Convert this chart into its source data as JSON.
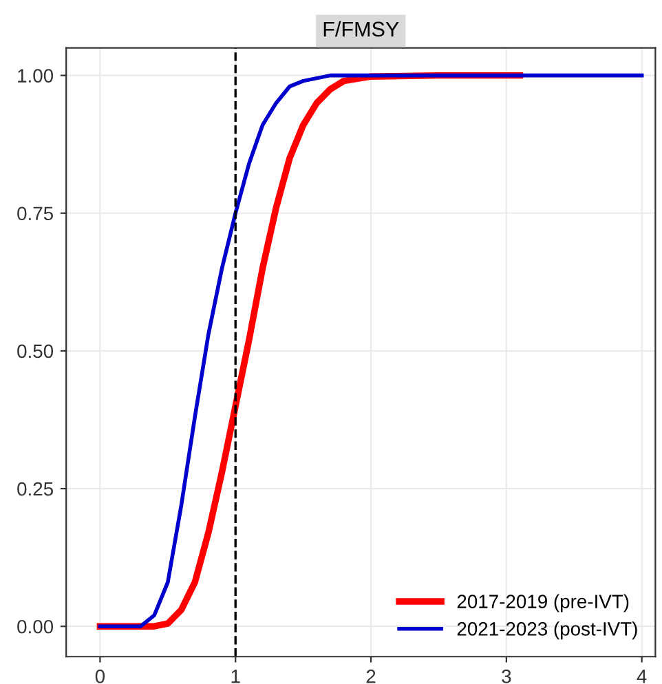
{
  "chart_data": {
    "type": "line",
    "title": "F/FMSY",
    "xlim": [
      -0.25,
      4.1
    ],
    "xticks": [
      0,
      1,
      2,
      3,
      4
    ],
    "ylim": [
      -0.055,
      1.05
    ],
    "yticks": [
      {
        "value": 0,
        "label": "0.00"
      },
      {
        "value": 0.25,
        "label": "0.25"
      },
      {
        "value": 0.5,
        "label": "0.50"
      },
      {
        "value": 0.75,
        "label": "0.75"
      },
      {
        "value": 1,
        "label": "1.00"
      }
    ],
    "grid": true,
    "legend": "bottom right",
    "marker": "none",
    "line_style": "solid",
    "ref_lines": [
      {
        "axis": "x",
        "value": 1,
        "label": null,
        "color": "#000000",
        "line_style": "dashed"
      }
    ],
    "series": [
      {
        "name": "2017-2019 (pre-IVT)",
        "color": "#ff0000",
        "x": [
          0,
          0.4,
          0.5,
          0.6,
          0.7,
          0.8,
          0.9,
          1.0,
          1.1,
          1.2,
          1.3,
          1.4,
          1.5,
          1.6,
          1.7,
          1.8,
          2.0,
          2.5,
          3.1
        ],
        "values": [
          0,
          0,
          0.005,
          0.03,
          0.08,
          0.17,
          0.28,
          0.4,
          0.52,
          0.65,
          0.76,
          0.85,
          0.91,
          0.95,
          0.975,
          0.99,
          0.998,
          1.0,
          1.0
        ]
      },
      {
        "name": "2021-2023 (post-IVT)",
        "color": "#0000cc",
        "x": [
          0,
          0.3,
          0.4,
          0.5,
          0.6,
          0.7,
          0.8,
          0.9,
          1.0,
          1.1,
          1.2,
          1.3,
          1.4,
          1.5,
          1.7,
          4.0
        ],
        "values": [
          0,
          0,
          0.02,
          0.08,
          0.22,
          0.38,
          0.53,
          0.65,
          0.75,
          0.84,
          0.91,
          0.95,
          0.98,
          0.99,
          1.0,
          1.0
        ]
      }
    ]
  }
}
